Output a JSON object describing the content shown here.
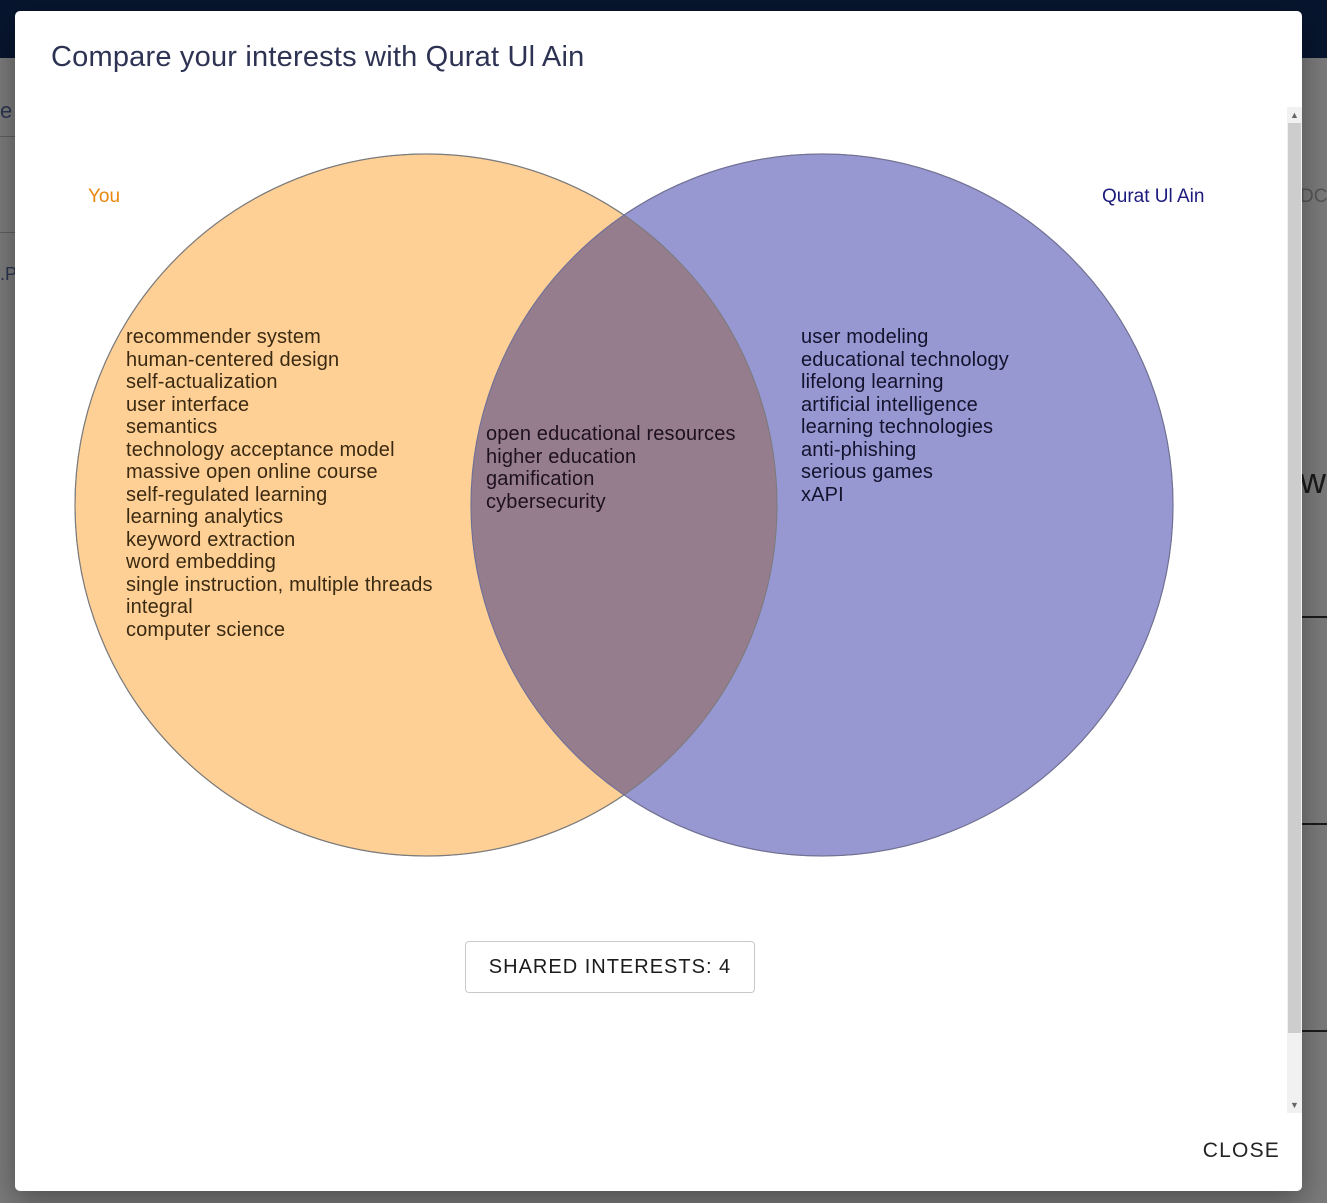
{
  "dialog": {
    "title": "Compare your interests with Qurat Ul Ain",
    "close_label": "CLOSE"
  },
  "venn": {
    "colors": {
      "you": "#ffd095",
      "other": "#9797d2",
      "overlap": "#967d8d"
    },
    "sets": [
      {
        "label": "You",
        "label_color": "#e8860c"
      },
      {
        "label": "Qurat Ul Ain",
        "label_color": "#1c1a7d"
      }
    ],
    "you_only": [
      "recommender system",
      "human-centered design",
      "self-actualization",
      "user interface",
      "semantics",
      "technology acceptance model",
      "massive open online course",
      "self-regulated learning",
      "learning analytics",
      "keyword extraction",
      "word embedding",
      "single instruction, multiple threads",
      "integral",
      "computer science"
    ],
    "shared": [
      "open educational resources",
      "higher education",
      "gamification",
      "cybersecurity"
    ],
    "other_only": [
      "user modeling",
      "educational technology",
      "lifelong learning",
      "artificial intelligence",
      "learning technologies",
      "anti-phishing",
      "serious games",
      "xAPI"
    ]
  },
  "shared_button": {
    "label": "SHARED INTERESTS: 4"
  },
  "background": {
    "frag1": "e",
    "frag2": ".P",
    "frag3": "DC",
    "frag4": "wh"
  }
}
